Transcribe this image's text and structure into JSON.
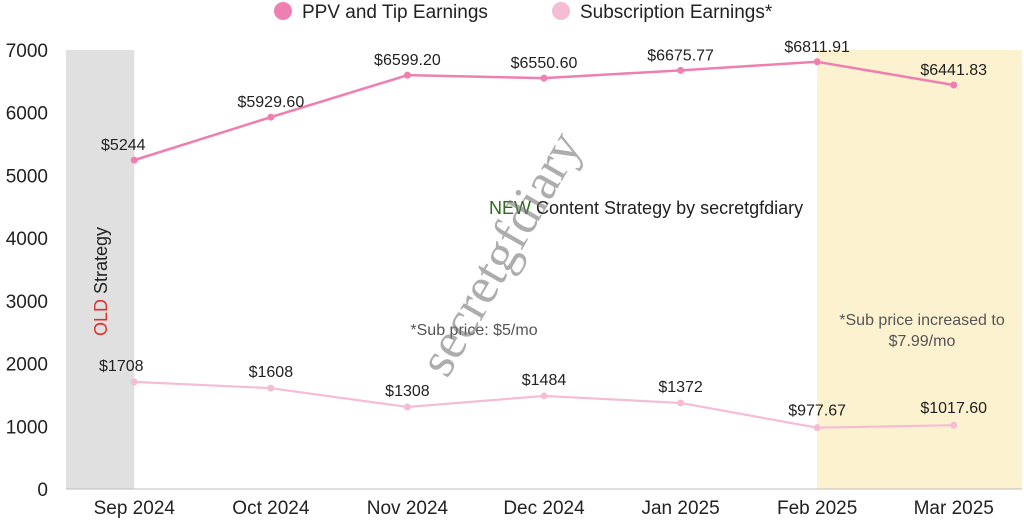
{
  "chart_data": {
    "type": "line",
    "categories": [
      "Sep 2024",
      "Oct 2024",
      "Nov 2024",
      "Dec 2024",
      "Jan 2025",
      "Feb 2025",
      "Mar 2025"
    ],
    "ylim": [
      0,
      7000
    ],
    "yticks": [
      0,
      1000,
      2000,
      3000,
      4000,
      5000,
      6000,
      7000
    ],
    "grid": false,
    "legend_position": "top",
    "series": [
      {
        "name": "PPV and Tip Earnings",
        "color": "#ef7fb0",
        "values": [
          5244,
          5929.6,
          6599.2,
          6550.6,
          6675.77,
          6811.91,
          6441.83
        ],
        "labels": [
          "$5244",
          "$5929.60",
          "$6599.20",
          "$6550.60",
          "$6675.77",
          "$6811.91",
          "$6441.83"
        ],
        "label_colors": [
          "#e0302a",
          "#222222",
          "#222222",
          "#222222",
          "#222222",
          "#222222",
          "#222222"
        ]
      },
      {
        "name": "Subscription Earnings*",
        "color": "#f5bcd6",
        "values": [
          1708,
          1608,
          1308,
          1484,
          1372,
          977.67,
          1017.6
        ],
        "labels": [
          "$1708",
          "$1608",
          "$1308",
          "$1484",
          "$1372",
          "$977.67",
          "$1017.60"
        ],
        "label_colors": [
          "#222222",
          "#222222",
          "#222222",
          "#222222",
          "#222222",
          "#222222",
          "#222222"
        ]
      }
    ],
    "shaded_regions": [
      {
        "name": "old-strategy",
        "color": "#e0e0e0"
      },
      {
        "name": "price-increase",
        "color": "#fdf2d0"
      }
    ],
    "annotations": {
      "old_strategy_prefix": "OLD",
      "old_strategy_suffix": " Strategy",
      "old_color": "#e0302a",
      "new_strategy_prefix": "NEW",
      "new_strategy_suffix": " Content Strategy by secretgfdiary",
      "new_color": "#2e6b1a",
      "sub_price_note": "*Sub price: $5/mo",
      "sub_increase_line1": "*Sub price increased to",
      "sub_increase_line2": "$7.99/mo"
    },
    "watermark": "secretgfdiary"
  }
}
